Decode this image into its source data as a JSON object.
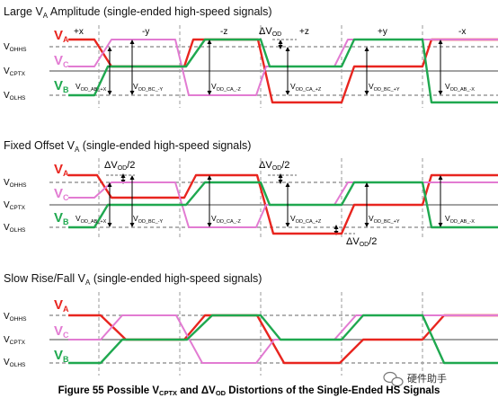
{
  "titles": {
    "p1": {
      "main": "Large V",
      "sub": "A",
      "rest": " Amplitude (single-ended high-speed signals)"
    },
    "p2": {
      "main": "Fixed Offset V",
      "sub": "A",
      "rest": " (single-ended high-speed signals)"
    },
    "p3": {
      "main": "Slow Rise/Fall V",
      "sub": "A",
      "rest": " (single-ended high-speed signals)"
    }
  },
  "rails": {
    "vohhs": {
      "main": "V",
      "sub": "OHHS"
    },
    "vcptx": {
      "main": "V",
      "sub": "CPTX"
    },
    "volhs": {
      "main": "V",
      "sub": "OLHS"
    }
  },
  "signals": {
    "a": {
      "main": "V",
      "sub": "A",
      "color": "#e8251f"
    },
    "c": {
      "main": "V",
      "sub": "C",
      "color": "#e27bd2"
    },
    "b": {
      "main": "V",
      "sub": "B",
      "color": "#1fa84f"
    }
  },
  "states": [
    "+x",
    "-y",
    "-z",
    "+z",
    "+y",
    "-x"
  ],
  "vod_labels": {
    "ab_px": {
      "main": "V",
      "sub": "OD_AB_+X"
    },
    "bc_my": {
      "main": "V",
      "sub": "OD_BC_-Y"
    },
    "ca_mz": {
      "main": "V",
      "sub": "OD_CA_-Z"
    },
    "ca_pz": {
      "main": "V",
      "sub": "OD_CA_+Z"
    },
    "bc_py": {
      "main": "V",
      "sub": "OD_BC_+Y"
    },
    "ab_mx": {
      "main": "V",
      "sub": "OD_AB_-X"
    }
  },
  "delta_vod": {
    "main": "ΔV",
    "sub": "OD"
  },
  "delta_vod_half": {
    "main": "ΔV",
    "sub": "OD",
    "tail": "/2"
  },
  "caption": {
    "pre": "Figure 55 Possible V",
    "sub1": "CPTX",
    "mid": " and ΔV",
    "sub2": "OD",
    "post": " Distortions of the Single-Ended HS Signals"
  },
  "watermark": {
    "text": "硬件助手",
    "icon": "wechat-icon"
  },
  "colors": {
    "rail": "#9a9a9a",
    "axis": "#000000",
    "cptx_line": "#444444"
  }
}
